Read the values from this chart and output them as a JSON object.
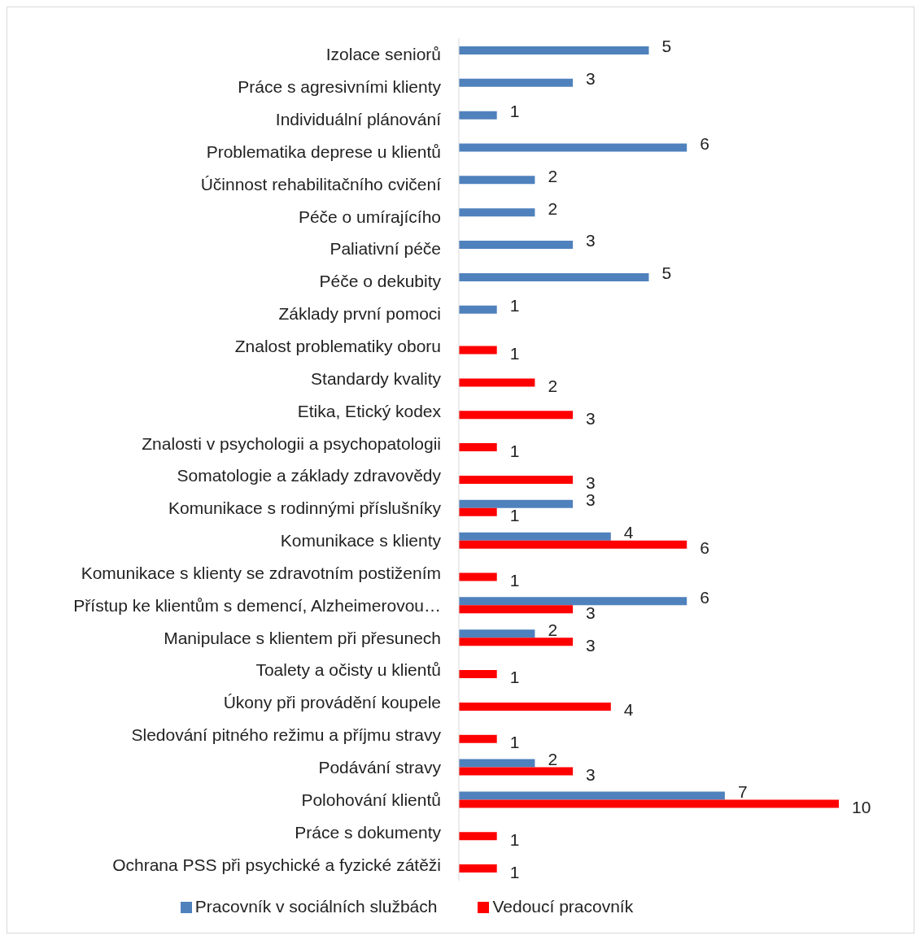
{
  "chart_data": {
    "type": "bar",
    "orientation": "horizontal",
    "data_labels": true,
    "legend": "bottom",
    "grid": false,
    "categories": [
      "Izolace seniorů",
      "Práce s agresivními klienty",
      "Individuální plánování",
      "Problematika deprese u klientů",
      "Účinnost rehabilitačního cvičení",
      "Péče o umírajícího",
      "Paliativní péče",
      "Péče o dekubity",
      "Základy první pomoci",
      "Znalost problematiky oboru",
      "Standardy kvality",
      "Etika, Etický kodex",
      "Znalosti v psychologii a psychopatologii",
      "Somatologie a základy zdravovědy",
      "Komunikace s rodinnými příslušníky",
      "Komunikace s klienty",
      "Komunikace s klienty se zdravotním postižením",
      "Přístup ke klientům s demencí, Alzheimerovou…",
      "Manipulace s klientem při přesunech",
      "Toalety a očisty u klientů",
      "Úkony při provádění koupele",
      "Sledování pitného režimu a příjmu stravy",
      "Podávání stravy",
      "Polohování klientů",
      "Práce s dokumenty",
      "Ochrana PSS při psychické a fyzické zátěži"
    ],
    "series": [
      {
        "name": "Pracovník v sociálních službách",
        "color": "#4f81bd",
        "values": [
          5,
          3,
          1,
          6,
          2,
          2,
          3,
          5,
          1,
          null,
          null,
          null,
          null,
          null,
          3,
          4,
          null,
          6,
          2,
          null,
          null,
          null,
          2,
          7,
          null,
          null
        ]
      },
      {
        "name": "Vedoucí pracovník",
        "color": "#ff0000",
        "values": [
          null,
          null,
          null,
          null,
          null,
          null,
          null,
          null,
          null,
          1,
          2,
          3,
          1,
          3,
          1,
          6,
          1,
          3,
          3,
          1,
          4,
          1,
          3,
          10,
          1,
          1
        ]
      }
    ]
  }
}
